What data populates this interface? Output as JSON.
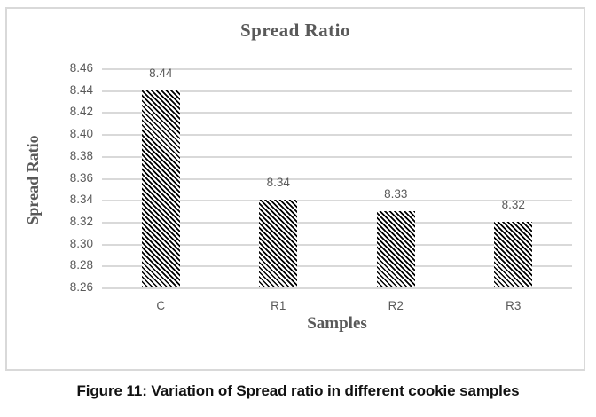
{
  "figure": {
    "caption": "Figure 11: Variation of Spread ratio in different cookie samples"
  },
  "chart_data": {
    "type": "bar",
    "title": "Spread Ratio",
    "xlabel": "Samples",
    "ylabel": "Spread Ratio",
    "categories": [
      "C",
      "R1",
      "R2",
      "R3"
    ],
    "values": [
      8.44,
      8.34,
      8.33,
      8.32
    ],
    "data_labels": [
      "8.44",
      "8.34",
      "8.33",
      "8.32"
    ],
    "ylim": [
      8.26,
      8.46
    ],
    "ytick_step": 0.02,
    "yticks": [
      8.46,
      8.44,
      8.42,
      8.4,
      8.38,
      8.36,
      8.34,
      8.32,
      8.3,
      8.28,
      8.26
    ],
    "ytick_labels": [
      "8.46",
      "8.44",
      "8.42",
      "8.40",
      "8.38",
      "8.36",
      "8.34",
      "8.32",
      "8.30",
      "8.28",
      "8.26"
    ],
    "grid": true,
    "legend": "none",
    "bar_style": "black-diagonal-hatch",
    "colors": {
      "text_gray": "#595959",
      "gridline": "#d9d9d9",
      "plot_border": "#d9d9d9",
      "hatch": "#000000",
      "caption": "#111111",
      "background": "#ffffff"
    }
  }
}
